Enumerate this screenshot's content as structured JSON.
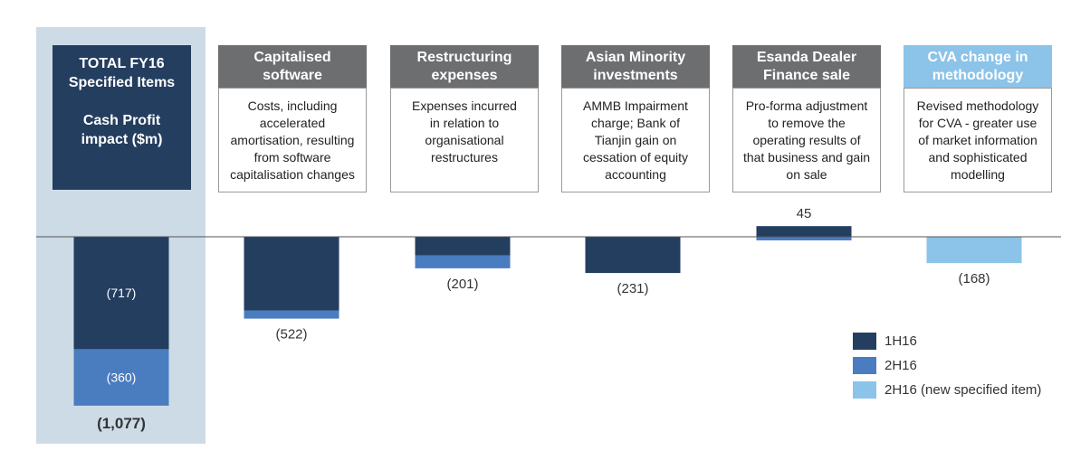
{
  "total_panel": {
    "line1": "TOTAL FY16",
    "line2": "Specified Items",
    "line3": "Cash Profit",
    "line4": "impact ($m)"
  },
  "categories": [
    {
      "header": [
        "Capitalised",
        "software"
      ],
      "header_style": "gray",
      "description": [
        "Costs, including",
        "accelerated",
        "amortisation, resulting",
        "from software",
        "capitalisation changes"
      ]
    },
    {
      "header": [
        "Restructuring",
        "expenses"
      ],
      "header_style": "gray",
      "description": [
        "Expenses incurred",
        "in relation to",
        "organisational",
        "restructures"
      ]
    },
    {
      "header": [
        "Asian Minority",
        "investments"
      ],
      "header_style": "gray",
      "description": [
        "AMMB Impairment",
        "charge;  Bank of",
        "Tianjin gain on",
        "cessation of equity",
        "accounting"
      ]
    },
    {
      "header": [
        "Esanda Dealer",
        "Finance sale"
      ],
      "header_style": "gray",
      "description": [
        "Pro-forma adjustment",
        "to remove the",
        "operating results of",
        "that business and  gain",
        "on sale"
      ]
    },
    {
      "header": [
        "CVA change in",
        "methodology"
      ],
      "header_style": "light",
      "description": [
        "Revised methodology",
        "for CVA - greater use",
        "of market information",
        "and sophisticated",
        "modelling"
      ]
    }
  ],
  "legend": [
    {
      "label": "1H16",
      "color": "#243e5f"
    },
    {
      "label": "2H16",
      "color": "#4a7cc0"
    },
    {
      "label": "2H16 (new specified item)",
      "color": "#8cc3e8"
    }
  ],
  "chart_data": {
    "type": "bar",
    "stacked": true,
    "categories": [
      "TOTAL FY16",
      "Capitalised software",
      "Restructuring expenses",
      "Asian Minority investments",
      "Esanda Dealer Finance sale",
      "CVA change in methodology"
    ],
    "series": [
      {
        "name": "1H16",
        "color": "#243e5f",
        "values": [
          -717,
          -470,
          -118,
          -231,
          68,
          0
        ]
      },
      {
        "name": "2H16",
        "color": "#4a7cc0",
        "values": [
          -360,
          -52,
          -83,
          0,
          -23,
          0
        ]
      },
      {
        "name": "2H16 (new specified item)",
        "color": "#8cc3e8",
        "values": [
          0,
          0,
          0,
          0,
          0,
          -168
        ]
      }
    ],
    "totals": [
      "(1,077)",
      "(522)",
      "(201)",
      "(231)",
      "45",
      "(168)"
    ],
    "segment_labels": {
      "TOTAL FY16": [
        "(717)",
        "(360)"
      ]
    }
  }
}
